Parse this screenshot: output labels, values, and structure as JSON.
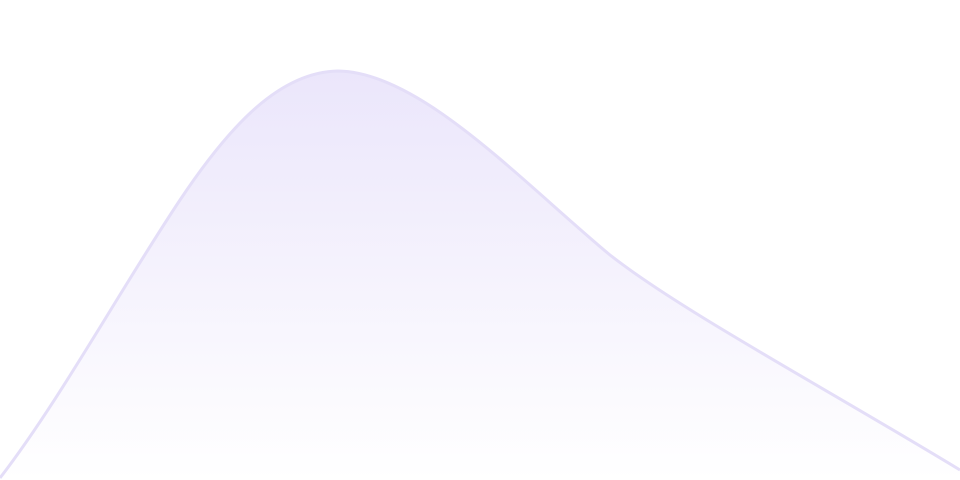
{
  "decoration": {
    "shape": "smooth-area-wave",
    "colors": {
      "background": "#ffffff",
      "stroke": "#e4def8",
      "fill_top": "#ebe6fb",
      "fill_bottom": "#ffffff"
    }
  }
}
